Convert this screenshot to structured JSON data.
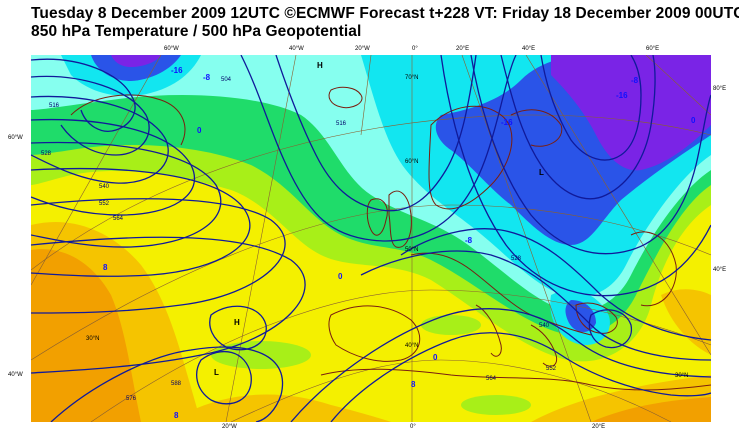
{
  "header": {
    "line1": "Tuesday 8 December 2009 12UTC ©ECMWF Forecast t+228 VT: Friday 18 December 2009 00UTC",
    "line2": "850 hPa Temperature / 500 hPa Geopotential"
  },
  "map": {
    "top_lon_labels": [
      "60°W",
      "40°W",
      "20°W",
      "0°",
      "20°E",
      "40°E",
      "60°E"
    ],
    "bottom_lon_labels": [
      "20°W",
      "0°",
      "20°E"
    ],
    "left_lat_labels": [
      "60°W",
      "40°W"
    ],
    "right_lat_labels": [
      "80°E",
      "40°E"
    ],
    "inner_lat_labels": [
      "70°N",
      "60°N",
      "50°N",
      "40°N",
      "30°N",
      "30°N"
    ],
    "pressure_centres": {
      "high": "H",
      "low": "L"
    },
    "geopotential_labels": [
      "516",
      "528",
      "540",
      "552",
      "564",
      "576",
      "588",
      "504",
      "516",
      "528",
      "540",
      "552",
      "564"
    ],
    "temperature_labels": [
      "-16",
      "-8",
      "0",
      "8",
      "-16",
      "-8",
      "0",
      "8",
      "-16",
      "-8",
      "0",
      "8",
      "0"
    ],
    "colors": {
      "very_cold": "#7a1fe6",
      "cold_blue": "#2a4ce8",
      "cyan": "#12e8f0",
      "light_cyan": "#7ffff0",
      "green": "#19e06a",
      "light_green": "#9af01a",
      "yellow": "#f4f000",
      "orange": "#f5c400",
      "dark_orange": "#f2a000",
      "contour": "#101a9a",
      "coast": "#7a1e10",
      "graticule": "#8a6030"
    }
  }
}
